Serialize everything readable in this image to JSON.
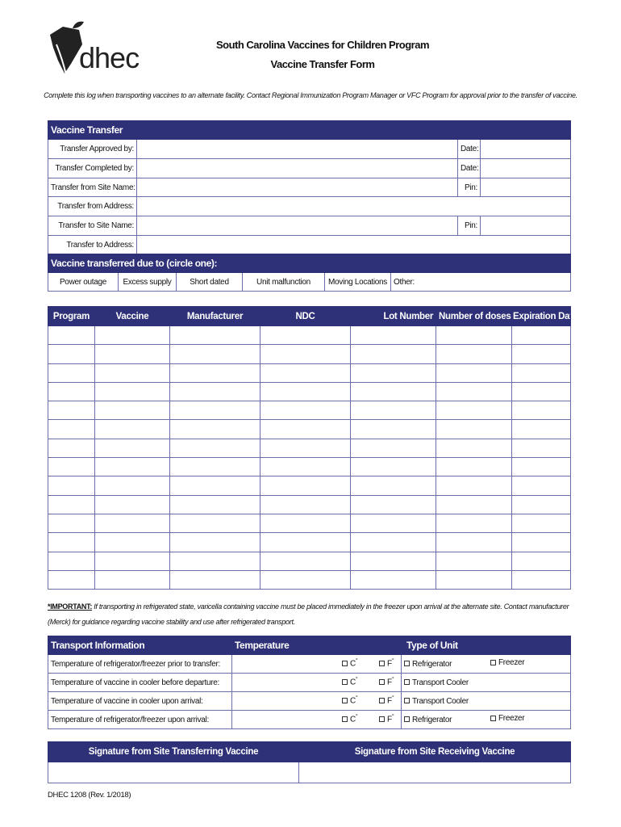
{
  "logo": {
    "text": "dhec"
  },
  "header": {
    "title": "South Carolina Vaccines for Children Program",
    "subtitle": "Vaccine Transfer Form"
  },
  "instructions": "Complete this log when transporting vaccines to an alternate facility.  Contact Regional Immunization Program Manager or VFC Program for approval prior to the transfer of vaccine.",
  "transfer": {
    "heading": "Vaccine Transfer",
    "rows": [
      {
        "label": "Transfer Approved by:",
        "side_label": "Date:"
      },
      {
        "label": "Transfer Completed by:",
        "side_label": "Date:"
      },
      {
        "label": "Transfer from Site Name:",
        "side_label": "Pin:"
      },
      {
        "label": "Transfer from Address:",
        "side_label": ""
      },
      {
        "label": "Transfer to Site Name:",
        "side_label": "Pin:"
      },
      {
        "label": "Transfer to Address:",
        "side_label": ""
      }
    ]
  },
  "reason": {
    "heading": "Vaccine transferred due to (circle one):",
    "options": [
      "Power outage",
      "Excess supply",
      "Short dated",
      "Unit malfunction",
      "Moving Locations",
      "Other:"
    ]
  },
  "products": {
    "columns": [
      "Program",
      "Vaccine",
      "Manufacturer",
      "NDC",
      "Lot Number",
      "Number of doses",
      "Expiration Date"
    ]
  },
  "important": {
    "label": "*IMPORTANT:",
    "text": " If transporting in refrigerated state, varicella containing vaccine must be placed immediately in the freezer upon arrival at the alternate site.  Contact manufacturer (Merck) for guidance regarding vaccine stability and use after refrigerated transport."
  },
  "transport": {
    "headings": [
      "Transport Information",
      "Temperature",
      "Type of Unit"
    ],
    "celsius": "C",
    "fahrenheit": "F",
    "degree": "°",
    "rows": [
      {
        "label": "Temperature of refrigerator/freezer prior to transfer:",
        "unit1": "Refrigerator",
        "unit2": "Freezer"
      },
      {
        "label": "Temperature of vaccine in cooler before departure:",
        "unit1": "Transport Cooler",
        "unit2": ""
      },
      {
        "label": "Temperature of vaccine in cooler upon arrival:",
        "unit1": "Transport Cooler",
        "unit2": ""
      },
      {
        "label": "Temperature of refrigerator/freezer upon arrival:",
        "unit1": "Refrigerator",
        "unit2": "Freezer"
      }
    ]
  },
  "signatures": {
    "transferring": "Signature from Site Transferring Vaccine",
    "receiving": "Signature from Site Receiving Vaccine"
  },
  "footer": "DHEC 1208 (Rev. 1/2018)",
  "colors": {
    "header_bg": "#2e3178"
  }
}
